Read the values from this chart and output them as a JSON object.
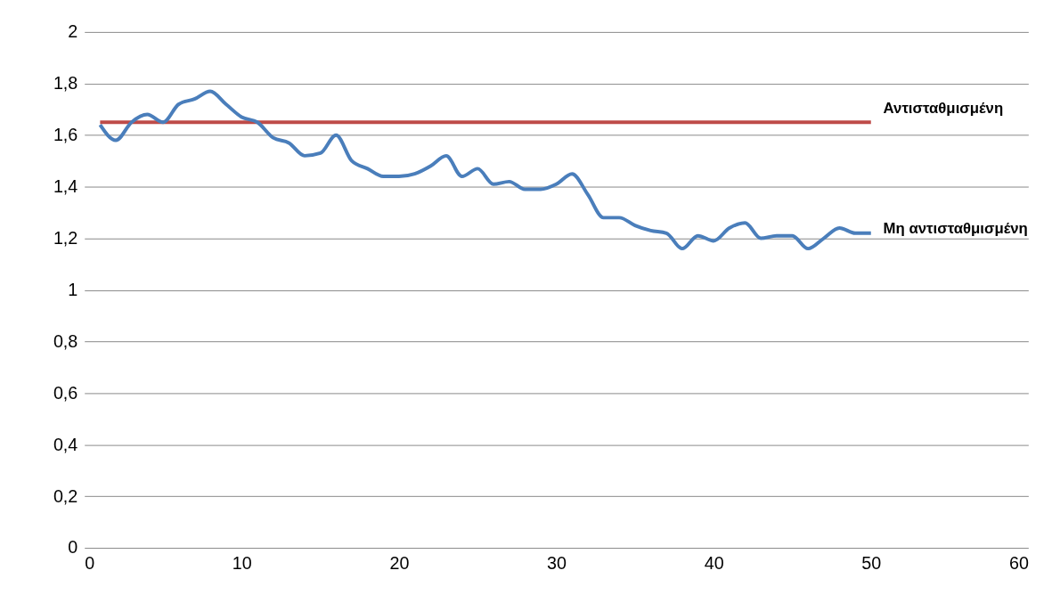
{
  "chart_data": {
    "type": "line",
    "xlim": [
      0,
      60
    ],
    "xticks": [
      0,
      10,
      20,
      30,
      40,
      50,
      60
    ],
    "ylim": [
      0,
      2
    ],
    "yticks": [
      {
        "value": 0,
        "label": "0"
      },
      {
        "value": 0.2,
        "label": "0,2"
      },
      {
        "value": 0.4,
        "label": "0,4"
      },
      {
        "value": 0.6,
        "label": "0,6"
      },
      {
        "value": 0.8,
        "label": "0,8"
      },
      {
        "value": 1,
        "label": "1"
      },
      {
        "value": 1.2,
        "label": "1,2"
      },
      {
        "value": 1.4,
        "label": "1,4"
      },
      {
        "value": 1.6,
        "label": "1,6"
      },
      {
        "value": 1.8,
        "label": "1,8"
      },
      {
        "value": 2,
        "label": "2"
      }
    ],
    "grid": "y",
    "legend": false,
    "marker": "none",
    "line_style": "solid",
    "series": [
      {
        "name": "Αντισταθμισμένη",
        "color": "#be4b48",
        "x": [
          1,
          50
        ],
        "values": [
          1.65,
          1.65
        ]
      },
      {
        "name": "Μη αντισταθμισμένη",
        "color": "#4a7ebb",
        "x": [
          1,
          2,
          3,
          4,
          5,
          6,
          7,
          8,
          9,
          10,
          11,
          12,
          13,
          14,
          15,
          16,
          17,
          18,
          19,
          20,
          21,
          22,
          23,
          24,
          25,
          26,
          27,
          28,
          29,
          30,
          31,
          32,
          33,
          34,
          35,
          36,
          37,
          38,
          39,
          40,
          41,
          42,
          43,
          44,
          45,
          46,
          47,
          48,
          49,
          50
        ],
        "values": [
          1.64,
          1.58,
          1.65,
          1.68,
          1.65,
          1.72,
          1.74,
          1.77,
          1.72,
          1.67,
          1.65,
          1.59,
          1.57,
          1.52,
          1.53,
          1.6,
          1.5,
          1.47,
          1.44,
          1.44,
          1.45,
          1.48,
          1.52,
          1.44,
          1.47,
          1.41,
          1.42,
          1.39,
          1.39,
          1.41,
          1.45,
          1.37,
          1.28,
          1.28,
          1.25,
          1.23,
          1.22,
          1.16,
          1.21,
          1.19,
          1.24,
          1.26,
          1.2,
          1.21,
          1.21,
          1.16,
          1.2,
          1.24,
          1.22,
          1.22
        ]
      }
    ]
  }
}
